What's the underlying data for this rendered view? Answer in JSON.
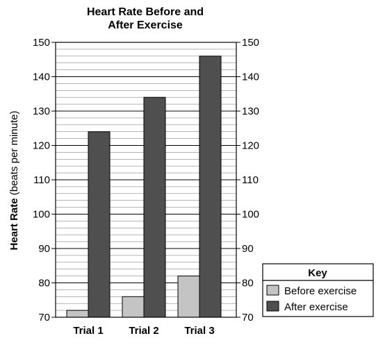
{
  "chart_data": {
    "type": "bar",
    "title_lines": [
      "Heart Rate Before and",
      "After Exercise"
    ],
    "ylabel_bold": "Heart Rate",
    "ylabel_rest": " (beats per minute)",
    "xlabel": "",
    "categories": [
      "Trial 1",
      "Trial 2",
      "Trial 3"
    ],
    "ylim": [
      70,
      150
    ],
    "yticks": [
      "70",
      "80",
      "90",
      "100",
      "110",
      "120",
      "130",
      "140",
      "150"
    ],
    "minor_grid_step": 2,
    "grid": true,
    "secondary_axis_right": true,
    "series": [
      {
        "name": "Before exercise",
        "values": [
          72,
          76,
          82
        ],
        "color": "#c4c4c4"
      },
      {
        "name": "After exercise",
        "values": [
          124,
          134,
          146
        ],
        "color": "#4f4f4f"
      }
    ],
    "legend": {
      "title": "Key",
      "placement": "bottom-right"
    }
  }
}
